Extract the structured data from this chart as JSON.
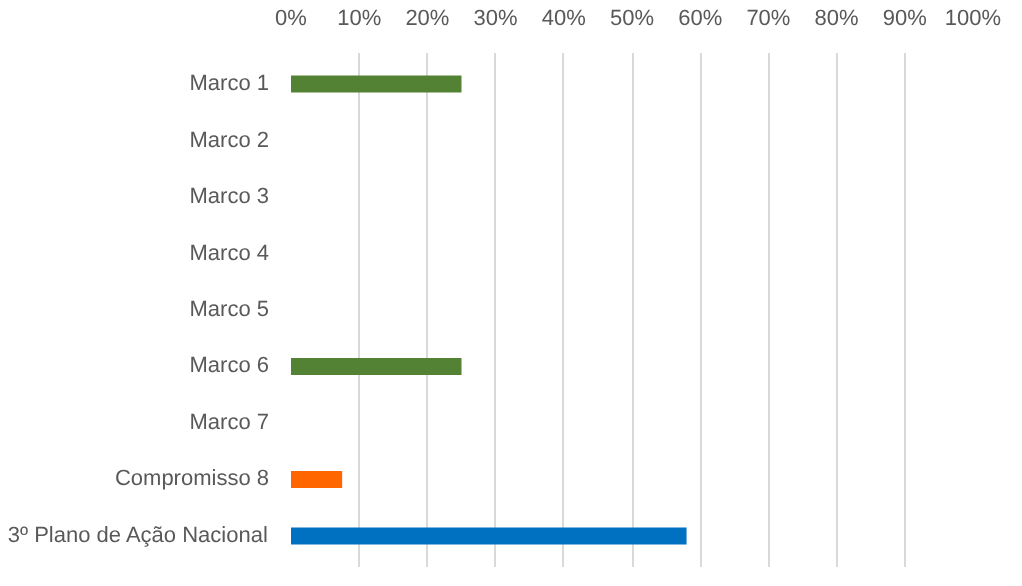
{
  "chart_data": {
    "type": "bar",
    "orientation": "horizontal",
    "categories": [
      "Marco 1",
      "Marco 2",
      "Marco 3",
      "Marco 4",
      "Marco 5",
      "Marco 6",
      "Marco 7",
      "Compromisso 8",
      "3º Plano de Ação Nacional"
    ],
    "values": [
      25,
      0,
      0,
      0,
      0,
      25,
      0,
      7.5,
      58
    ],
    "colors": [
      "#548235",
      "#548235",
      "#548235",
      "#548235",
      "#548235",
      "#548235",
      "#548235",
      "#ff6600",
      "#0070c0"
    ],
    "xlim": [
      0,
      100
    ],
    "xticks": [
      {
        "value": 0,
        "label": "0%"
      },
      {
        "value": 10,
        "label": "10%"
      },
      {
        "value": 20,
        "label": "20%"
      },
      {
        "value": 30,
        "label": "30%"
      },
      {
        "value": 40,
        "label": "40%"
      },
      {
        "value": 50,
        "label": "50%"
      },
      {
        "value": 60,
        "label": "60%"
      },
      {
        "value": 70,
        "label": "70%"
      },
      {
        "value": 80,
        "label": "80%"
      },
      {
        "value": 90,
        "label": "90%"
      },
      {
        "value": 100,
        "label": "100%"
      }
    ],
    "grid": "x"
  }
}
